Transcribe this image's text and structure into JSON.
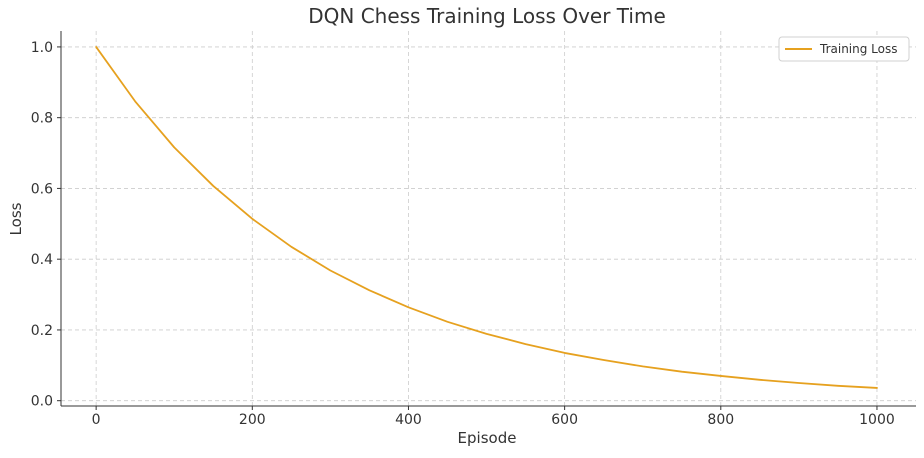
{
  "chart_data": {
    "type": "line",
    "title": "DQN Chess Training Loss Over Time",
    "xlabel": "Episode",
    "ylabel": "Loss",
    "xlim": [
      -45,
      1050
    ],
    "ylim": [
      -0.015,
      1.045
    ],
    "xticks": [
      0,
      200,
      400,
      600,
      800,
      1000
    ],
    "yticks": [
      0.0,
      0.2,
      0.4,
      0.6,
      0.8,
      1.0
    ],
    "xtick_labels": [
      "0",
      "200",
      "400",
      "600",
      "800",
      "1000"
    ],
    "ytick_labels": [
      "0.0",
      "0.2",
      "0.4",
      "0.6",
      "0.8",
      "1.0"
    ],
    "grid": true,
    "legend": "top-right",
    "series": [
      {
        "name": "Training Loss",
        "color": "#e6a11f",
        "x": [
          0,
          50,
          100,
          150,
          200,
          250,
          300,
          350,
          400,
          450,
          500,
          550,
          600,
          650,
          700,
          750,
          800,
          850,
          900,
          950,
          1000
        ],
        "y": [
          1.0,
          0.846,
          0.716,
          0.607,
          0.514,
          0.435,
          0.368,
          0.312,
          0.264,
          0.223,
          0.189,
          0.16,
          0.135,
          0.115,
          0.097,
          0.082,
          0.07,
          0.059,
          0.05,
          0.042,
          0.036
        ]
      }
    ]
  }
}
